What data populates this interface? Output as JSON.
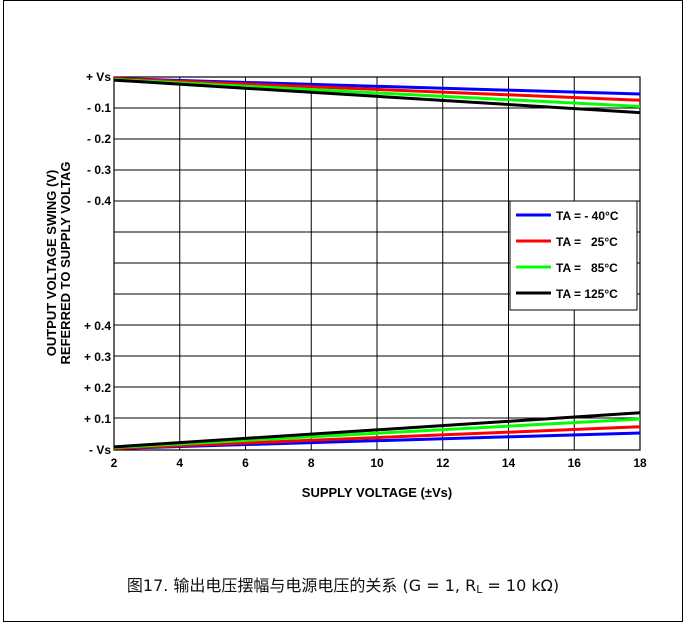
{
  "chart_data": {
    "type": "line",
    "title": "",
    "xlabel": "SUPPLY VOLTAGE (±Vs)",
    "ylabel": "OUTPUT VOLTAGE SWING (V)",
    "ylabel2": "REFERRED TO SUPPLY VOLTAG",
    "xlim": [
      2,
      18
    ],
    "x_ticks": [
      "2",
      "4",
      "6",
      "8",
      "10",
      "12",
      "14",
      "16",
      "18"
    ],
    "upper_y_ticks": [
      "+ Vs",
      "- 0.1",
      "- 0.2",
      "- 0.3",
      "- 0.4"
    ],
    "lower_y_ticks": [
      "+ 0.4",
      "+ 0.3",
      "+ 0.2",
      "+ 0.1",
      "- Vs"
    ],
    "grid": true,
    "legend_position": "right",
    "series": [
      {
        "name": "TA = - 40°C",
        "color": "#0000ff",
        "x": [
          2,
          18
        ],
        "upper_y": [
          -0.005,
          -0.055
        ],
        "lower_y": [
          0.005,
          0.055
        ]
      },
      {
        "name": "TA =   25°C",
        "color": "#ff0000",
        "x": [
          2,
          18
        ],
        "upper_y": [
          -0.005,
          -0.075
        ],
        "lower_y": [
          0.005,
          0.075
        ]
      },
      {
        "name": "TA =   85°C",
        "color": "#00ff00",
        "x": [
          2,
          18
        ],
        "upper_y": [
          -0.008,
          -0.095
        ],
        "lower_y": [
          0.008,
          0.1
        ]
      },
      {
        "name": "TA = 125°C",
        "color": "#000000",
        "x": [
          2,
          18
        ],
        "upper_y": [
          -0.01,
          -0.115
        ],
        "lower_y": [
          0.01,
          0.12
        ]
      }
    ]
  },
  "caption": {
    "prefix": "图17. 输出电压摆幅与电源电压的关系 (G = 1, R",
    "sub": "L",
    "suffix": " = 10 kΩ)"
  }
}
